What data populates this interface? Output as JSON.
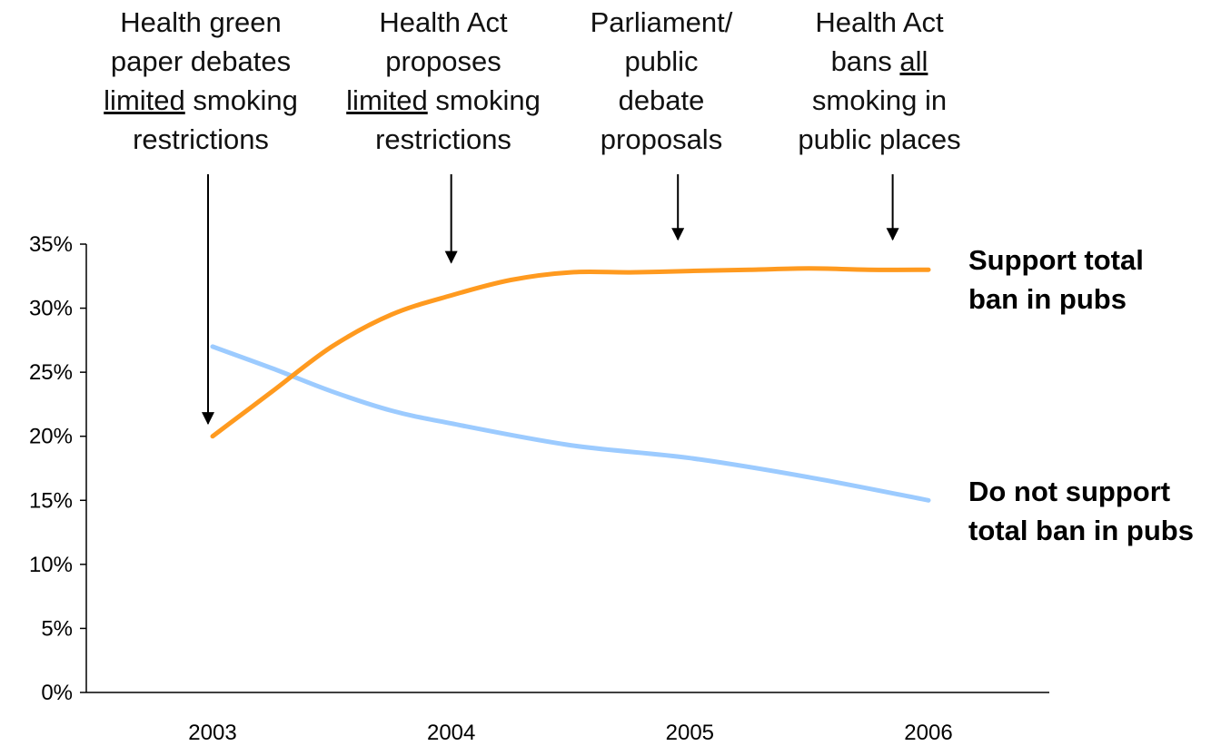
{
  "chart_data": {
    "type": "line",
    "x": [
      2003,
      2004,
      2005,
      2006
    ],
    "xlim": [
      2003,
      2006
    ],
    "ylim": [
      0,
      35
    ],
    "y_ticks": [
      "0%",
      "5%",
      "10%",
      "15%",
      "20%",
      "25%",
      "30%",
      "35%"
    ],
    "x_ticks": [
      "2003",
      "2004",
      "2005",
      "2006"
    ],
    "grid": false,
    "series": [
      {
        "name": "Support total ban in pubs",
        "label_lines": [
          "Support total",
          "ban in pubs"
        ],
        "color": "#ff9a1f",
        "points": [
          [
            2003.0,
            20.0
          ],
          [
            2003.25,
            23.5
          ],
          [
            2003.5,
            27.0
          ],
          [
            2003.75,
            29.5
          ],
          [
            2004.0,
            31.0
          ],
          [
            2004.25,
            32.2
          ],
          [
            2004.5,
            32.8
          ],
          [
            2004.75,
            32.8
          ],
          [
            2005.0,
            32.9
          ],
          [
            2005.25,
            33.0
          ],
          [
            2005.5,
            33.1
          ],
          [
            2005.75,
            33.0
          ],
          [
            2006.0,
            33.0
          ]
        ]
      },
      {
        "name": "Do not support total ban in pubs",
        "label_lines": [
          "Do not support",
          "total ban in pubs"
        ],
        "color": "#9ccbff",
        "points": [
          [
            2003.0,
            27.0
          ],
          [
            2003.25,
            25.3
          ],
          [
            2003.5,
            23.5
          ],
          [
            2003.75,
            22.0
          ],
          [
            2004.0,
            21.0
          ],
          [
            2004.5,
            19.3
          ],
          [
            2005.0,
            18.3
          ],
          [
            2005.5,
            16.8
          ],
          [
            2006.0,
            15.0
          ]
        ]
      }
    ],
    "annotations": [
      {
        "lines": [
          [
            {
              "t": "Health green"
            }
          ],
          [
            {
              "t": "paper debates"
            }
          ],
          [
            {
              "t": "limited",
              "u": true
            },
            {
              "t": " smoking"
            }
          ],
          [
            {
              "t": "restrictions"
            }
          ]
        ],
        "x": 2003.0,
        "y": 20.0
      },
      {
        "lines": [
          [
            {
              "t": "Health Act"
            }
          ],
          [
            {
              "t": "proposes"
            }
          ],
          [
            {
              "t": "limited",
              "u": true
            },
            {
              "t": " smoking"
            }
          ],
          [
            {
              "t": "restrictions"
            }
          ]
        ],
        "x": 2004.0,
        "y": 33.0
      },
      {
        "lines": [
          [
            {
              "t": "Parliament/"
            }
          ],
          [
            {
              "t": "public"
            }
          ],
          [
            {
              "t": "debate"
            }
          ],
          [
            {
              "t": "proposals"
            }
          ]
        ],
        "x": 2004.95,
        "y": 34.8
      },
      {
        "lines": [
          [
            {
              "t": "Health Act"
            }
          ],
          [
            {
              "t": "bans "
            },
            {
              "t": "all",
              "u": true
            }
          ],
          [
            {
              "t": "smoking in"
            }
          ],
          [
            {
              "t": "public places"
            }
          ]
        ],
        "x": 2005.85,
        "y": 34.8
      }
    ]
  }
}
